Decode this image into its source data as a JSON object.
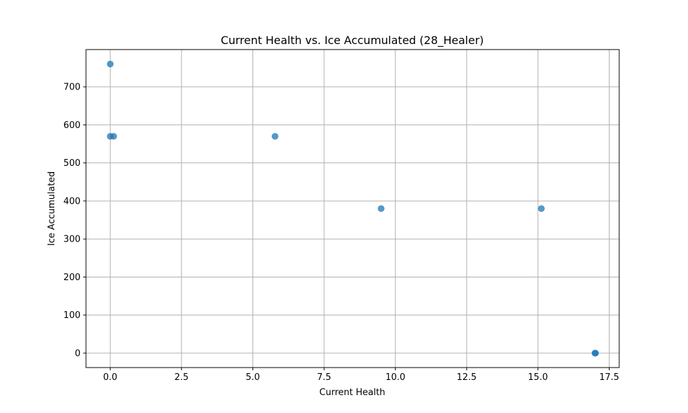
{
  "chart_data": {
    "type": "scatter",
    "title": "Current Health vs. Ice Accumulated (28_Healer)",
    "xlabel": "Current Health",
    "ylabel": "Ice Accumulated",
    "xlim": [
      -0.85,
      17.85
    ],
    "ylim": [
      -38,
      798
    ],
    "xticks": [
      0,
      2.5,
      5,
      7.5,
      10,
      12.5,
      15,
      17.5
    ],
    "xtick_labels": [
      "0.0",
      "2.5",
      "5.0",
      "7.5",
      "10.0",
      "12.5",
      "15.0",
      "17.5"
    ],
    "yticks": [
      0,
      100,
      200,
      300,
      400,
      500,
      600,
      700
    ],
    "ytick_labels": [
      "0",
      "100",
      "200",
      "300",
      "400",
      "500",
      "600",
      "700"
    ],
    "grid": true,
    "point_color": "#1f77b4",
    "points": [
      {
        "x": 0.0,
        "y": 760
      },
      {
        "x": 0.0,
        "y": 570
      },
      {
        "x": 0.12,
        "y": 570
      },
      {
        "x": 5.78,
        "y": 570
      },
      {
        "x": 9.5,
        "y": 380
      },
      {
        "x": 15.12,
        "y": 380
      },
      {
        "x": 17.0,
        "y": 0
      },
      {
        "x": 17.02,
        "y": 0
      }
    ]
  }
}
